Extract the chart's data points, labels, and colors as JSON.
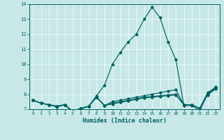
{
  "xlabel": "Humidex (Indice chaleur)",
  "xlim": [
    -0.5,
    23.5
  ],
  "ylim": [
    7,
    14
  ],
  "yticks": [
    7,
    8,
    9,
    10,
    11,
    12,
    13,
    14
  ],
  "xticks": [
    0,
    1,
    2,
    3,
    4,
    5,
    6,
    7,
    8,
    9,
    10,
    11,
    12,
    13,
    14,
    15,
    16,
    17,
    18,
    19,
    20,
    21,
    22,
    23
  ],
  "bg_color": "#c8e8e8",
  "line_color": "#006060",
  "grid_color": "#e8f8f8",
  "lines": [
    {
      "x": [
        0,
        1,
        2,
        3,
        4,
        5,
        6,
        7,
        8,
        9,
        10,
        11,
        12,
        13,
        14,
        15,
        16,
        17,
        18,
        19,
        20,
        21,
        22,
        23
      ],
      "y": [
        7.6,
        7.4,
        7.3,
        7.15,
        7.3,
        6.8,
        7.0,
        7.2,
        7.9,
        8.6,
        10.0,
        10.8,
        11.5,
        12.0,
        13.0,
        13.8,
        13.1,
        11.5,
        10.3,
        7.25,
        7.25,
        6.9,
        8.0,
        8.5
      ]
    },
    {
      "x": [
        0,
        1,
        2,
        3,
        4,
        5,
        6,
        7,
        8,
        9,
        10,
        11,
        12,
        13,
        14,
        15,
        16,
        17,
        18,
        19,
        20,
        21,
        22,
        23
      ],
      "y": [
        7.6,
        7.4,
        7.3,
        7.2,
        7.3,
        6.85,
        7.05,
        7.2,
        7.8,
        7.25,
        7.5,
        7.6,
        7.7,
        7.8,
        7.9,
        8.0,
        8.1,
        8.2,
        8.3,
        7.3,
        7.3,
        7.05,
        8.1,
        8.45
      ]
    },
    {
      "x": [
        0,
        1,
        2,
        3,
        4,
        5,
        6,
        7,
        8,
        9,
        10,
        11,
        12,
        13,
        14,
        15,
        16,
        17,
        18,
        19,
        20,
        21,
        22,
        23
      ],
      "y": [
        7.6,
        7.4,
        7.3,
        7.2,
        7.3,
        6.85,
        7.05,
        7.2,
        7.8,
        7.25,
        7.4,
        7.5,
        7.6,
        7.7,
        7.8,
        7.85,
        7.9,
        7.95,
        8.0,
        7.3,
        7.3,
        7.05,
        8.0,
        8.4
      ]
    },
    {
      "x": [
        0,
        1,
        2,
        3,
        4,
        5,
        6,
        7,
        8,
        9,
        10,
        11,
        12,
        13,
        14,
        15,
        16,
        17,
        18,
        19,
        20,
        21,
        22,
        23
      ],
      "y": [
        7.6,
        7.4,
        7.3,
        7.2,
        7.3,
        6.85,
        7.05,
        7.2,
        7.8,
        7.25,
        7.35,
        7.45,
        7.55,
        7.65,
        7.75,
        7.8,
        7.85,
        7.9,
        7.95,
        7.3,
        7.3,
        7.05,
        7.95,
        8.35
      ]
    }
  ]
}
